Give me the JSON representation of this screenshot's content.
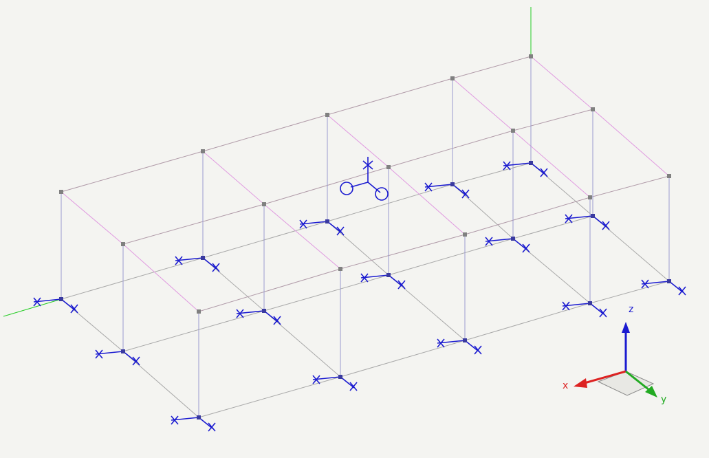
{
  "axes": {
    "x": "x",
    "y": "y",
    "z": "z"
  }
}
